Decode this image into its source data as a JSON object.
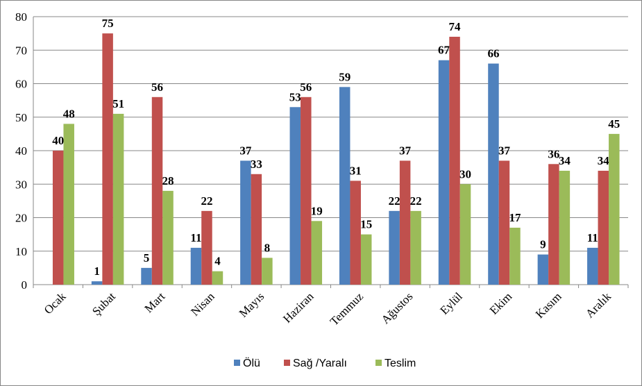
{
  "chart_data": {
    "type": "bar",
    "categories": [
      "Ocak",
      "Şubat",
      "Mart",
      "Nisan",
      "Mayıs",
      "Haziran",
      "Temmuz",
      "Ağustos",
      "Eylül",
      "Ekim",
      "Kasım",
      "Aralık"
    ],
    "series": [
      {
        "name": "Ölü",
        "color": "#4F81BD",
        "values": [
          0,
          1,
          5,
          11,
          37,
          53,
          59,
          22,
          67,
          66,
          9,
          11
        ]
      },
      {
        "name": "Sağ /Yaralı",
        "color": "#C0504D",
        "values": [
          40,
          75,
          56,
          22,
          33,
          56,
          31,
          37,
          74,
          37,
          36,
          34
        ]
      },
      {
        "name": "Teslim",
        "color": "#9BBB59",
        "values": [
          48,
          51,
          28,
          4,
          8,
          19,
          15,
          22,
          30,
          17,
          34,
          45
        ]
      }
    ],
    "data_labels": [
      [
        "",
        "1",
        "5",
        "11",
        "37",
        "53",
        "59",
        "22",
        "67",
        "66",
        "9",
        "11"
      ],
      [
        "40",
        "75",
        "56",
        "22",
        "33",
        "56",
        "31",
        "37",
        "74",
        "37",
        "36",
        "34"
      ],
      [
        "48",
        "51",
        "28",
        "4",
        "8",
        "19",
        "15",
        "22",
        "30",
        "17",
        "34",
        "45"
      ]
    ],
    "y_ticks": [
      "0",
      "10",
      "20",
      "30",
      "40",
      "50",
      "60",
      "70",
      "80"
    ],
    "ylim": [
      0,
      80
    ],
    "grid": true,
    "legend_position": "bottom"
  }
}
